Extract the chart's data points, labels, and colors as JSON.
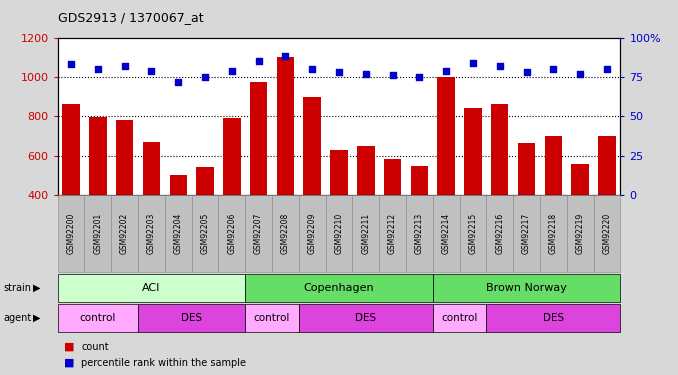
{
  "title": "GDS2913 / 1370067_at",
  "samples": [
    "GSM92200",
    "GSM92201",
    "GSM92202",
    "GSM92203",
    "GSM92204",
    "GSM92205",
    "GSM92206",
    "GSM92207",
    "GSM92208",
    "GSM92209",
    "GSM92210",
    "GSM92211",
    "GSM92212",
    "GSM92213",
    "GSM92214",
    "GSM92215",
    "GSM92216",
    "GSM92217",
    "GSM92218",
    "GSM92219",
    "GSM92220"
  ],
  "counts": [
    860,
    795,
    780,
    670,
    500,
    540,
    790,
    975,
    1100,
    900,
    630,
    648,
    585,
    545,
    1000,
    840,
    860,
    665,
    700,
    555,
    700
  ],
  "percentiles": [
    83,
    80,
    82,
    79,
    72,
    75,
    79,
    85,
    88,
    80,
    78,
    77,
    76,
    75,
    79,
    84,
    82,
    78,
    80,
    77,
    80
  ],
  "ylim_left": [
    400,
    1200
  ],
  "ylim_right": [
    0,
    100
  ],
  "yticks_left": [
    400,
    600,
    800,
    1000,
    1200
  ],
  "yticks_right": [
    0,
    25,
    50,
    75,
    100
  ],
  "bar_color": "#cc0000",
  "dot_color": "#0000cc",
  "background_color": "#d8d8d8",
  "plot_bg_color": "#ffffff",
  "xlabel_color": "#cc0000",
  "ylabel_right_color": "#0000cc",
  "title_color": "#000000",
  "xticklabel_bg": "#c8c8c8",
  "strain_light": "#ccffcc",
  "strain_dark": "#66dd66",
  "agent_light": "#ffaaff",
  "agent_dark": "#dd44dd",
  "strain_defs": [
    {
      "label": "ACI",
      "start": 0,
      "end": 6,
      "light": true
    },
    {
      "label": "Copenhagen",
      "start": 7,
      "end": 13,
      "light": false
    },
    {
      "label": "Brown Norway",
      "start": 14,
      "end": 20,
      "light": false
    }
  ],
  "agent_defs": [
    {
      "label": "control",
      "start": 0,
      "end": 2,
      "light": true
    },
    {
      "label": "DES",
      "start": 3,
      "end": 6,
      "light": false
    },
    {
      "label": "control",
      "start": 7,
      "end": 8,
      "light": true
    },
    {
      "label": "DES",
      "start": 9,
      "end": 13,
      "light": false
    },
    {
      "label": "control",
      "start": 14,
      "end": 15,
      "light": true
    },
    {
      "label": "DES",
      "start": 16,
      "end": 20,
      "light": false
    }
  ]
}
